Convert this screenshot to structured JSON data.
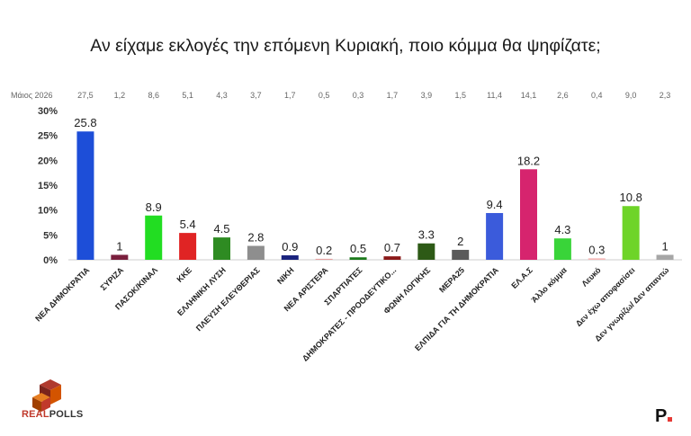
{
  "chart_data": {
    "type": "bar",
    "title": "Αν είχαμε εκλογές την επόμενη Κυριακή, ποιο κόμμα θα ψηφίζατε;",
    "comparison_label": "Μάιος 2026",
    "categories": [
      "ΝΕΑ ΔΗΜΟΚΡΑΤΙΑ",
      "ΣΥΡΙΖΑ",
      "ΠΑΣΟΚ/ΚΙΝΑΛ",
      "ΚΚΕ",
      "ΕΛΛΗΝΙΚΗ ΛΥΣΗ",
      "ΠΛΕΥΣΗ ΕΛΕΥΘΕΡΙΑΣ",
      "ΝΙΚΗ",
      "ΝΕΑ ΑΡΙΣΤΕΡΑ",
      "ΣΠΑΡΤΙΑΤΕΣ",
      "ΔΗΜΟΚΡΑΤΕΣ - ΠΡΟΟΔΕΥΤΙΚΟ...",
      "ΦΩΝΗ ΛΟΓΙΚΗΣ",
      "ΜΕΡΑ25",
      "ΕΛΠΙΔΑ ΓΙΑ ΤΗ ΔΗΜΟΚΡΑΤΙΑ",
      "ΕΛ.Α.Σ",
      "Άλλο κόμμα",
      "Λευκό",
      "Δεν έχω αποφασίσει",
      "Δεν γνωρίζω/ Δεν απαντώ"
    ],
    "values": [
      25.8,
      1,
      8.9,
      5.4,
      4.5,
      2.8,
      0.9,
      0.2,
      0.5,
      0.7,
      3.3,
      2,
      9.4,
      18.2,
      4.3,
      0.3,
      10.8,
      1
    ],
    "value_labels": [
      "25.8",
      "1",
      "8.9",
      "5.4",
      "4.5",
      "2.8",
      "0.9",
      "0.2",
      "0.5",
      "0.7",
      "3.3",
      "2",
      "9.4",
      "18.2",
      "4.3",
      "0.3",
      "10.8",
      "1"
    ],
    "comparison_values": [
      "27,5",
      "1,2",
      "8,6",
      "5,1",
      "4,3",
      "3,7",
      "1,7",
      "0,5",
      "0,3",
      "1,7",
      "3,9",
      "1,5",
      "11,4",
      "14,1",
      "2,6",
      "0,4",
      "9,0",
      "2,3"
    ],
    "colors": [
      "#1d4ed8",
      "#7a1f3d",
      "#22dd22",
      "#e02424",
      "#2e8b22",
      "#8e8e8e",
      "#1a237e",
      "#e8a0a0",
      "#1b7a1b",
      "#8b1a1a",
      "#2d5a16",
      "#5a5a5a",
      "#3b5bdb",
      "#d6246e",
      "#39d439",
      "#f4b6b6",
      "#6ed428",
      "#a6a6a6"
    ],
    "yticks": [
      "0%",
      "5%",
      "10%",
      "15%",
      "20%",
      "25%",
      "30%"
    ],
    "ylim": [
      0,
      30
    ],
    "xlabel": "",
    "ylabel": "",
    "grid": false
  },
  "logo": {
    "text_a": "REAL",
    "text_b": "POLLS",
    "tagline": ""
  },
  "brand": {
    "mark": "P"
  }
}
